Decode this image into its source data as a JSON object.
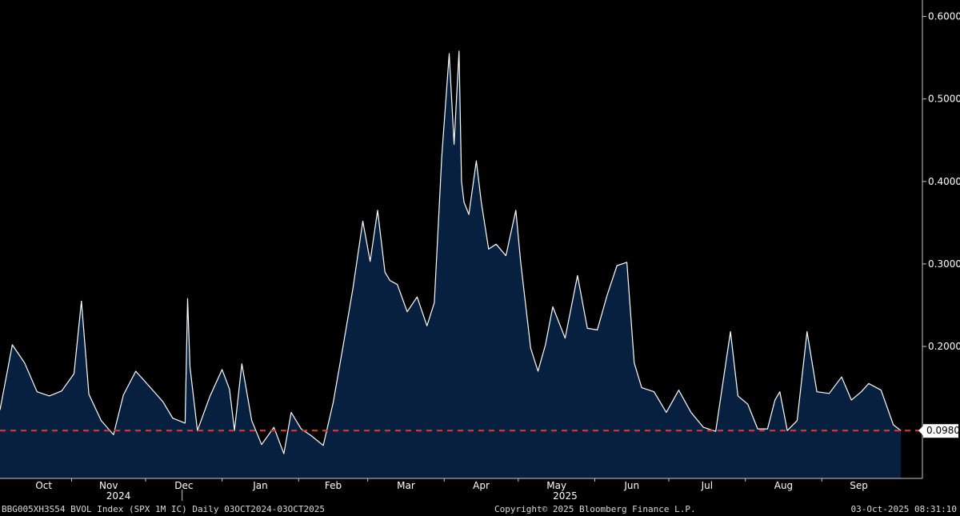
{
  "footer": {
    "left": "BBG005XH3S54 BVOL Index (SPX 1M IC) Daily 03OCT2024-03OCT2025",
    "center": "Copyright© 2025 Bloomberg Finance L.P.",
    "right": "03-Oct-2025 08:31:10"
  },
  "chart_data": {
    "type": "area",
    "x_ticks": [
      "Oct",
      "Nov",
      "Dec",
      "Jan",
      "Feb",
      "Mar",
      "Apr",
      "May",
      "Jun",
      "Jul",
      "Aug",
      "Sep"
    ],
    "x_years": [
      "2024",
      "2025"
    ],
    "y_ticks": [
      "0.6000",
      "0.5000",
      "0.4000",
      "0.3000",
      "0.2000"
    ],
    "ylim": [
      0.04,
      0.62
    ],
    "last_value_label": "0.0980",
    "reference_line": 0.098,
    "grid": false,
    "colors": {
      "line": "#ffffff",
      "fill": "#07203f",
      "reference": "#e0342c",
      "axis": "#c8c8c8"
    },
    "series": [
      {
        "dates": [
          "2024-10-03",
          "2024-10-08",
          "2024-10-13",
          "2024-10-18",
          "2024-10-23",
          "2024-10-28",
          "2024-11-02",
          "2024-11-05",
          "2024-11-08",
          "2024-11-13",
          "2024-11-18",
          "2024-11-22",
          "2024-11-27",
          "2024-12-03",
          "2024-12-08",
          "2024-12-12",
          "2024-12-17",
          "2024-12-18",
          "2024-12-19",
          "2024-12-22",
          "2024-12-27",
          "2025-01-01",
          "2025-01-04",
          "2025-01-06",
          "2025-01-09",
          "2025-01-13",
          "2025-01-17",
          "2025-01-22",
          "2025-01-26",
          "2025-01-29",
          "2025-02-02",
          "2025-02-06",
          "2025-02-11",
          "2025-02-15",
          "2025-02-19",
          "2025-02-23",
          "2025-02-27",
          "2025-03-02",
          "2025-03-05",
          "2025-03-08",
          "2025-03-10",
          "2025-03-13",
          "2025-03-17",
          "2025-03-21",
          "2025-03-25",
          "2025-03-28",
          "2025-03-31",
          "2025-04-03",
          "2025-04-05",
          "2025-04-07",
          "2025-04-08",
          "2025-04-09",
          "2025-04-11",
          "2025-04-14",
          "2025-04-16",
          "2025-04-19",
          "2025-04-22",
          "2025-04-26",
          "2025-04-30",
          "2025-05-02",
          "2025-05-06",
          "2025-05-09",
          "2025-05-12",
          "2025-05-15",
          "2025-05-20",
          "2025-05-25",
          "2025-05-29",
          "2025-06-02",
          "2025-06-06",
          "2025-06-10",
          "2025-06-14",
          "2025-06-17",
          "2025-06-20",
          "2025-06-25",
          "2025-06-30",
          "2025-07-05",
          "2025-07-10",
          "2025-07-15",
          "2025-07-20",
          "2025-07-26",
          "2025-07-29",
          "2025-08-02",
          "2025-08-06",
          "2025-08-10",
          "2025-08-13",
          "2025-08-15",
          "2025-08-18",
          "2025-08-22",
          "2025-08-26",
          "2025-08-30",
          "2025-09-04",
          "2025-09-09",
          "2025-09-13",
          "2025-09-17",
          "2025-09-20",
          "2025-09-25",
          "2025-09-30",
          "2025-10-03"
        ],
        "values": [
          0.123,
          0.202,
          0.18,
          0.145,
          0.14,
          0.146,
          0.167,
          0.255,
          0.142,
          0.11,
          0.093,
          0.141,
          0.17,
          0.15,
          0.133,
          0.113,
          0.107,
          0.258,
          0.175,
          0.098,
          0.139,
          0.172,
          0.148,
          0.098,
          0.179,
          0.11,
          0.081,
          0.102,
          0.07,
          0.12,
          0.1,
          0.092,
          0.08,
          0.132,
          0.2,
          0.27,
          0.352,
          0.303,
          0.365,
          0.29,
          0.28,
          0.275,
          0.242,
          0.26,
          0.225,
          0.253,
          0.43,
          0.555,
          0.445,
          0.558,
          0.4,
          0.375,
          0.36,
          0.425,
          0.375,
          0.318,
          0.324,
          0.31,
          0.365,
          0.302,
          0.198,
          0.17,
          0.202,
          0.248,
          0.21,
          0.286,
          0.222,
          0.22,
          0.262,
          0.298,
          0.302,
          0.18,
          0.15,
          0.145,
          0.12,
          0.147,
          0.12,
          0.102,
          0.097,
          0.218,
          0.14,
          0.13,
          0.1,
          0.1,
          0.135,
          0.145,
          0.098,
          0.11,
          0.218,
          0.145,
          0.143,
          0.163,
          0.135,
          0.145,
          0.155,
          0.147,
          0.105,
          0.098
        ]
      }
    ]
  }
}
